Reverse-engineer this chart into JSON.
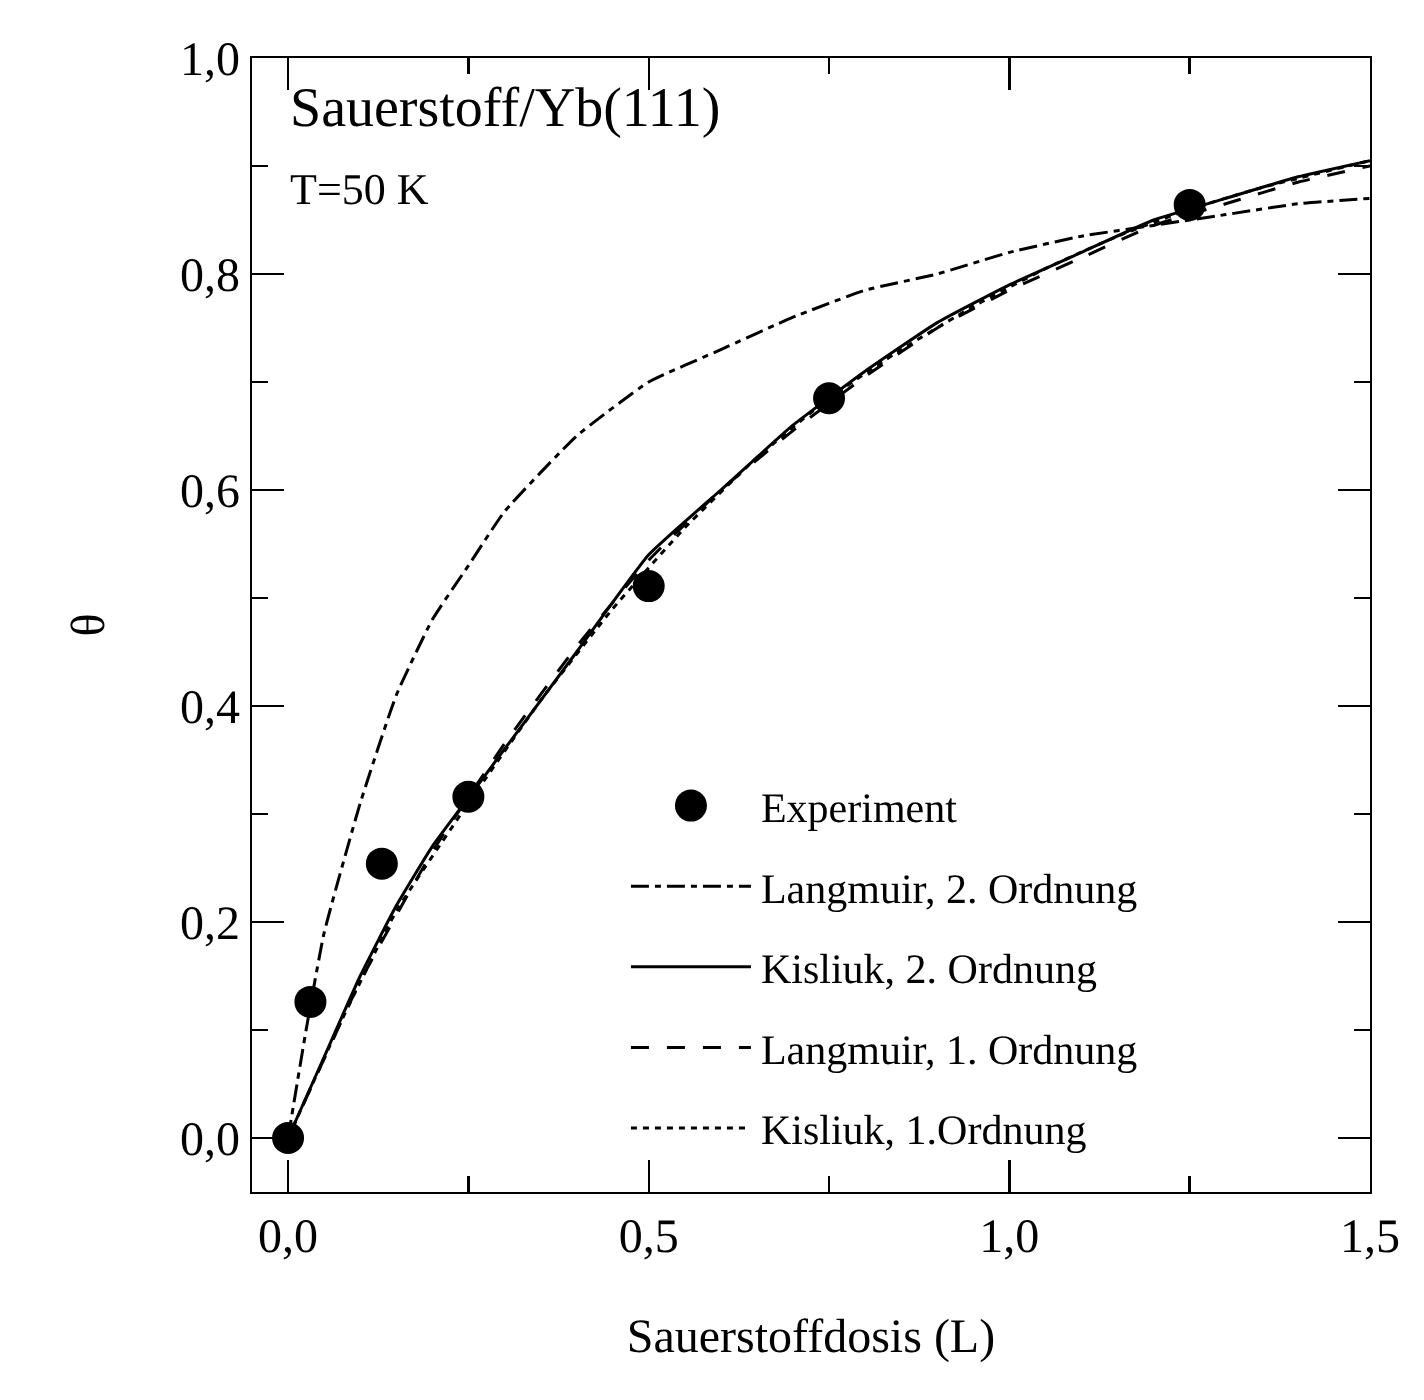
{
  "chart_data": {
    "type": "line",
    "xlabel": "Sauerstoffdosis (L)",
    "ylabel": "θ",
    "annotations": [
      "Sauerstoff/Yb(111)",
      "T=50 K"
    ],
    "xlim": [
      -0.05,
      1.5
    ],
    "xticks": [
      {
        "value": 0,
        "label": "0,0"
      },
      {
        "value": 0.25,
        "label": null
      },
      {
        "value": 0.5,
        "label": "0,5"
      },
      {
        "value": 0.75,
        "label": null
      },
      {
        "value": 1,
        "label": "1,0"
      },
      {
        "value": 1.25,
        "label": null
      },
      {
        "value": 1.5,
        "label": "1,5"
      }
    ],
    "ylim": [
      -0.05,
      1.0
    ],
    "yticks": [
      {
        "value": 0,
        "label": "0,0"
      },
      {
        "value": 0.1,
        "label": null
      },
      {
        "value": 0.2,
        "label": "0,2"
      },
      {
        "value": 0.3,
        "label": null
      },
      {
        "value": 0.4,
        "label": "0,4"
      },
      {
        "value": 0.5,
        "label": null
      },
      {
        "value": 0.6,
        "label": "0,6"
      },
      {
        "value": 0.7,
        "label": null
      },
      {
        "value": 0.8,
        "label": "0,8"
      },
      {
        "value": 0.9,
        "label": null
      },
      {
        "value": 1.0,
        "label": "1,0"
      }
    ],
    "grid": false,
    "legend": "bottom right",
    "series": [
      {
        "name": "Experiment",
        "type": "scatter",
        "marker": "circle",
        "color": "#000000",
        "x": [
          0,
          0.031,
          0.13,
          0.25,
          0.5,
          0.75,
          1.25
        ],
        "values": [
          0,
          0.126,
          0.254,
          0.316,
          0.511,
          0.685,
          0.864
        ]
      },
      {
        "name": "Langmuir, 2. Ordnung",
        "line_style": "dashdot",
        "color": "#000000",
        "x": [
          0,
          0.025,
          0.05,
          0.1,
          0.15,
          0.2,
          0.25,
          0.3,
          0.4,
          0.5,
          0.6,
          0.7,
          0.8,
          0.9,
          1.0,
          1.1,
          1.2,
          1.3,
          1.4,
          1.5
        ],
        "values": [
          0,
          0.1,
          0.19,
          0.31,
          0.41,
          0.48,
          0.53,
          0.58,
          0.65,
          0.7,
          0.73,
          0.76,
          0.785,
          0.8,
          0.82,
          0.835,
          0.845,
          0.855,
          0.865,
          0.87
        ]
      },
      {
        "name": "Kisliuk, 2. Ordnung",
        "line_style": "solid",
        "color": "#000000",
        "x": [
          0,
          0.05,
          0.1,
          0.15,
          0.2,
          0.25,
          0.3,
          0.4,
          0.5,
          0.6,
          0.7,
          0.8,
          0.9,
          1.0,
          1.1,
          1.2,
          1.3,
          1.4,
          1.5
        ],
        "values": [
          0,
          0.075,
          0.15,
          0.215,
          0.27,
          0.315,
          0.36,
          0.45,
          0.54,
          0.6,
          0.66,
          0.71,
          0.755,
          0.79,
          0.82,
          0.85,
          0.87,
          0.89,
          0.905
        ]
      },
      {
        "name": "Langmuir, 1. Ordnung",
        "line_style": "dashed",
        "color": "#000000",
        "x": [
          0,
          0.1,
          0.2,
          0.3,
          0.4,
          0.5,
          0.6,
          0.7,
          0.8,
          0.9,
          1.0,
          1.1,
          1.2,
          1.3,
          1.4,
          1.5
        ],
        "values": [
          0,
          0.145,
          0.265,
          0.365,
          0.455,
          0.535,
          0.6,
          0.655,
          0.705,
          0.75,
          0.785,
          0.815,
          0.845,
          0.865,
          0.885,
          0.9
        ]
      },
      {
        "name": "Kisliuk, 1.Ordnung",
        "line_style": "dotted",
        "color": "#000000",
        "x": [
          0,
          0.075,
          0.15,
          0.25,
          0.35,
          0.45,
          0.55,
          0.65,
          0.75,
          0.85,
          0.95,
          1.05,
          1.15,
          1.25,
          1.35,
          1.5
        ],
        "values": [
          0,
          0.11,
          0.21,
          0.31,
          0.405,
          0.49,
          0.565,
          0.63,
          0.685,
          0.73,
          0.77,
          0.805,
          0.835,
          0.86,
          0.88,
          0.905
        ]
      }
    ]
  }
}
